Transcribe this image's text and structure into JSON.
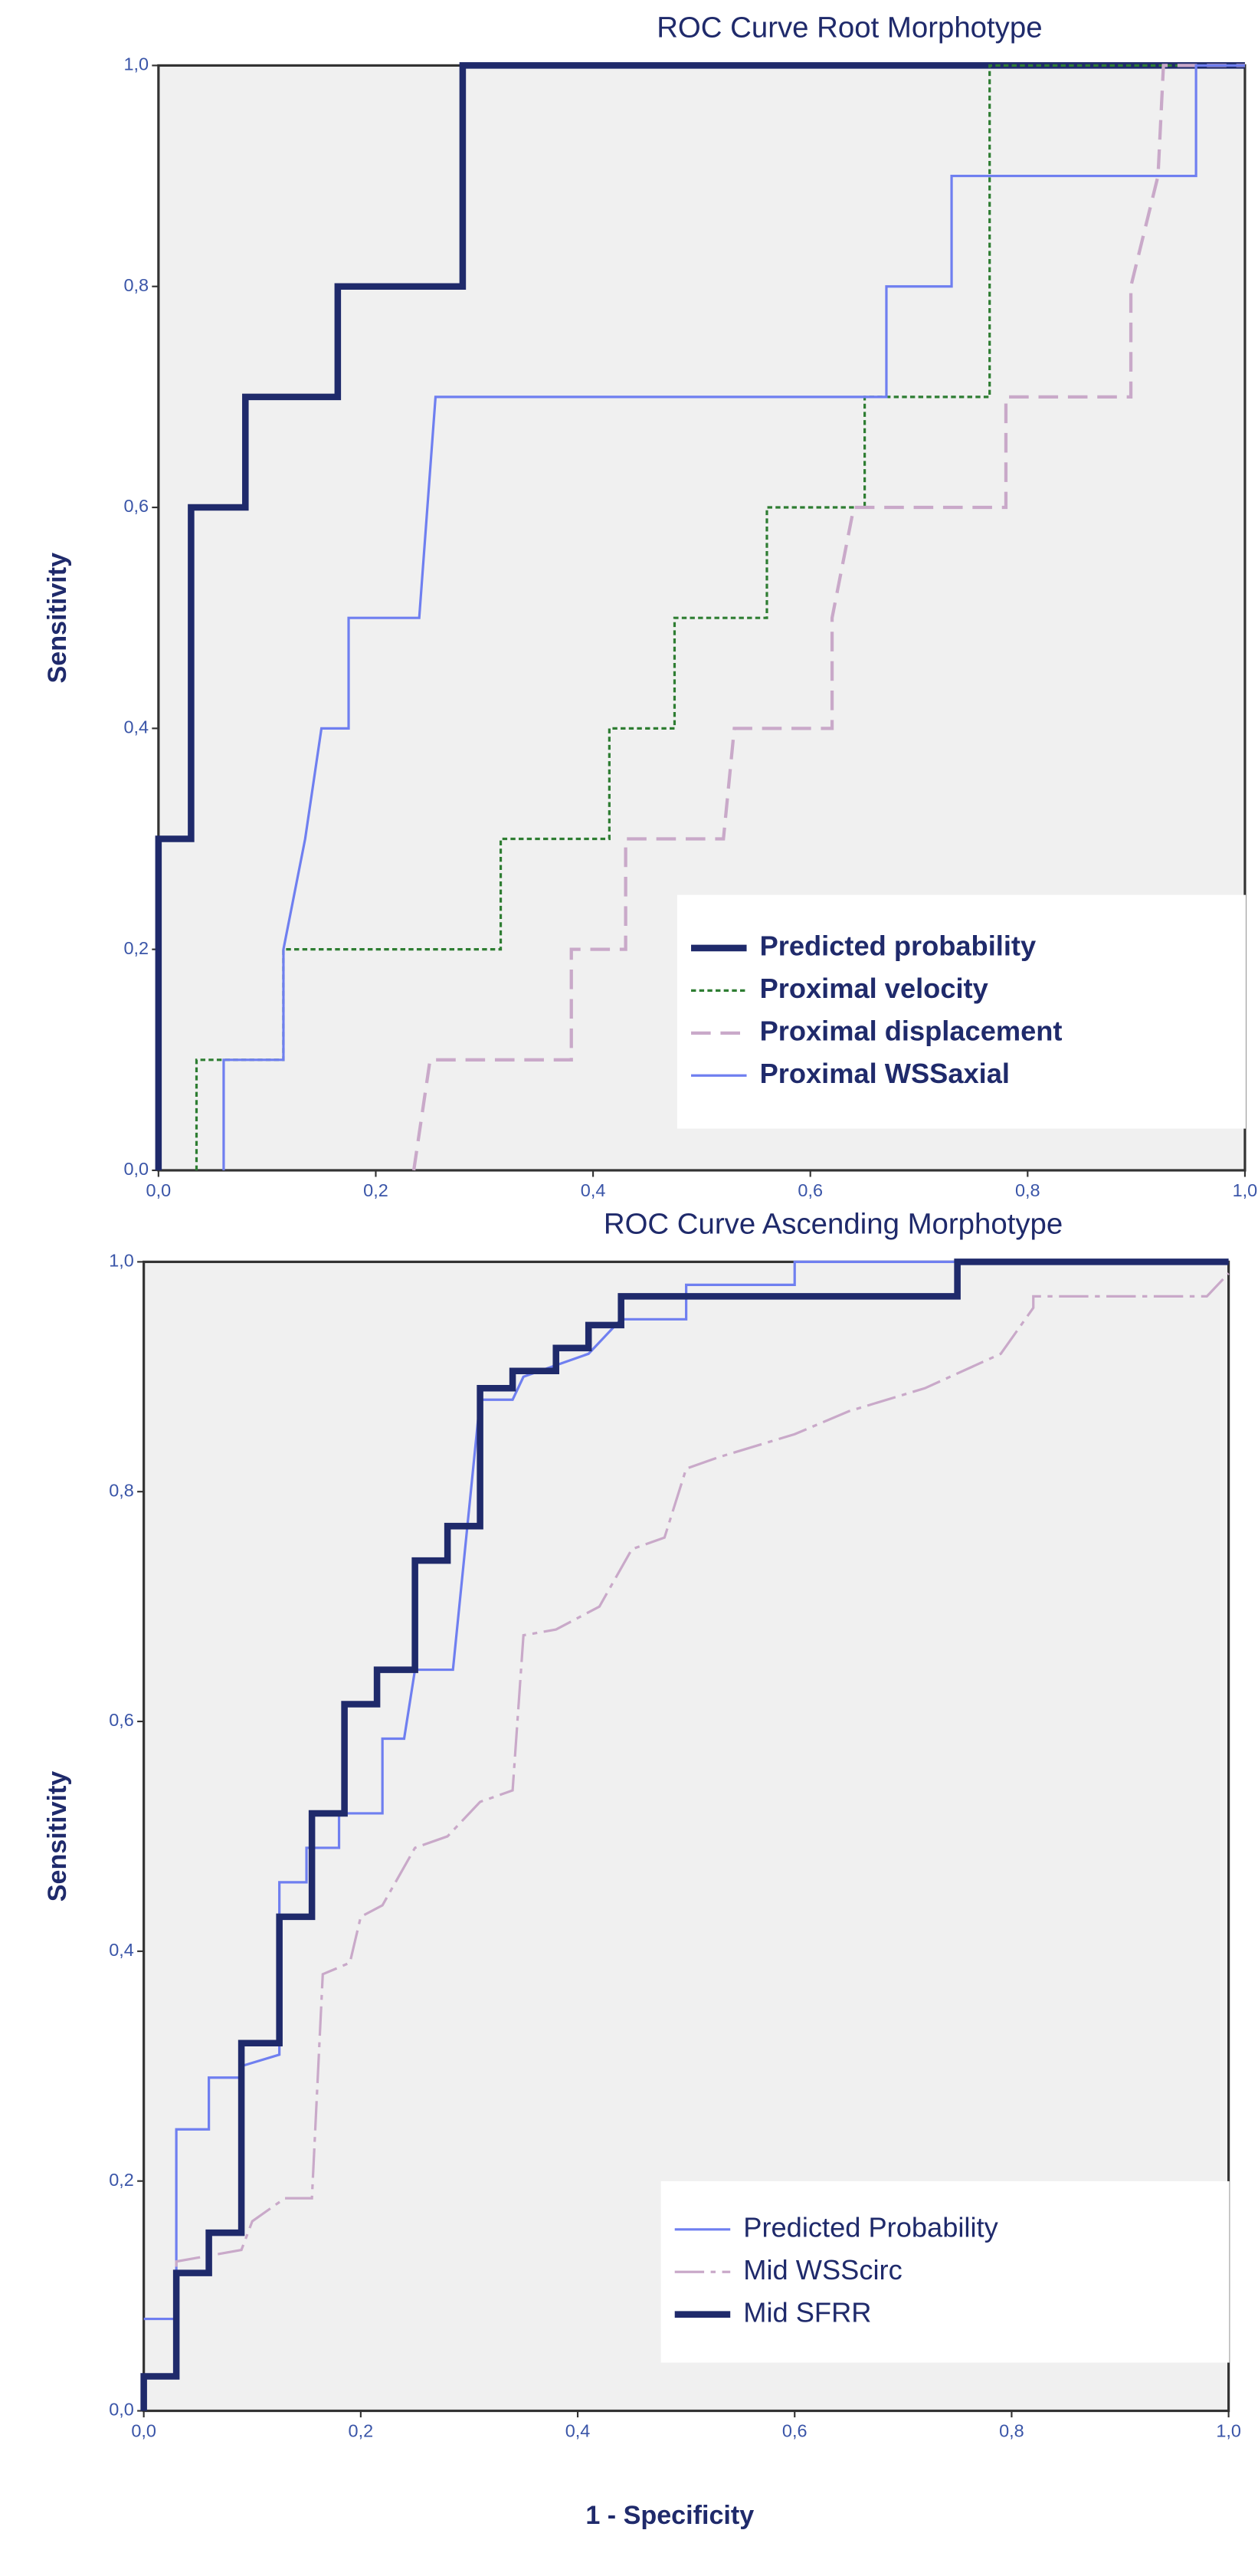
{
  "chart_data": [
    {
      "type": "line",
      "title": "ROC Curve Root Morphotype",
      "ylabel": "Sensitivity",
      "xlim": [
        0,
        1
      ],
      "ylim": [
        0,
        1
      ],
      "xticks": [
        {
          "value": 0,
          "label": "0,0"
        },
        {
          "value": 0.2,
          "label": "0,2"
        },
        {
          "value": 0.4,
          "label": "0,4"
        },
        {
          "value": 0.6,
          "label": "0,6"
        },
        {
          "value": 0.8,
          "label": "0,8"
        },
        {
          "value": 1,
          "label": "1,0"
        }
      ],
      "yticks": [
        {
          "value": 0,
          "label": "0,0"
        },
        {
          "value": 0.2,
          "label": "0,2"
        },
        {
          "value": 0.4,
          "label": "0,4"
        },
        {
          "value": 0.6,
          "label": "0,6"
        },
        {
          "value": 0.8,
          "label": "0,8"
        },
        {
          "value": 1,
          "label": "1,0"
        }
      ],
      "grid": false,
      "legend": "lower right",
      "legend_bold": true,
      "series": [
        {
          "name": "Predicted probability",
          "color": "#1f2a6b",
          "width": 4,
          "dash": "solid",
          "x": [
            0,
            0,
            0.03,
            0.03,
            0.08,
            0.08,
            0.165,
            0.165,
            0.28,
            0.28,
            1
          ],
          "values": [
            0,
            0.3,
            0.3,
            0.6,
            0.6,
            0.7,
            0.7,
            0.8,
            0.8,
            1,
            1
          ]
        },
        {
          "name": "Proximal velocity",
          "color": "#2e7d32",
          "width": 1.5,
          "dash": "dotted",
          "x": [
            0.035,
            0.035,
            0.115,
            0.115,
            0.315,
            0.315,
            0.415,
            0.415,
            0.475,
            0.475,
            0.56,
            0.56,
            0.65,
            0.65,
            0.765,
            0.765,
            1
          ],
          "values": [
            0,
            0.1,
            0.1,
            0.2,
            0.2,
            0.3,
            0.3,
            0.4,
            0.4,
            0.5,
            0.5,
            0.6,
            0.6,
            0.7,
            0.7,
            1,
            1
          ]
        },
        {
          "name": "Proximal displacement",
          "color": "#c9a9c9",
          "width": 2,
          "dash": "dashed",
          "x": [
            0.235,
            0.25,
            0.38,
            0.38,
            0.43,
            0.43,
            0.52,
            0.53,
            0.62,
            0.62,
            0.64,
            0.78,
            0.78,
            0.895,
            0.895,
            0.92,
            0.925,
            1
          ],
          "values": [
            0,
            0.1,
            0.1,
            0.2,
            0.2,
            0.3,
            0.3,
            0.4,
            0.4,
            0.5,
            0.6,
            0.6,
            0.7,
            0.7,
            0.8,
            0.9,
            1,
            1
          ]
        },
        {
          "name": "Proximal WSSaxial",
          "color": "#6f7ff0",
          "width": 1.5,
          "dash": "solid",
          "x": [
            0.06,
            0.06,
            0.115,
            0.115,
            0.135,
            0.15,
            0.175,
            0.175,
            0.24,
            0.255,
            0.67,
            0.67,
            0.73,
            0.73,
            0.955,
            0.955,
            1
          ],
          "values": [
            0,
            0.1,
            0.1,
            0.2,
            0.3,
            0.4,
            0.4,
            0.5,
            0.5,
            0.7,
            0.7,
            0.8,
            0.8,
            0.9,
            0.9,
            1,
            1
          ]
        }
      ]
    },
    {
      "type": "line",
      "title": "ROC Curve Ascending Morphotype",
      "ylabel": "Sensitivity",
      "xlabel": "1 - Specificity",
      "xlim": [
        0,
        1
      ],
      "ylim": [
        0,
        1
      ],
      "xticks": [
        {
          "value": 0,
          "label": "0,0"
        },
        {
          "value": 0.2,
          "label": "0,2"
        },
        {
          "value": 0.4,
          "label": "0,4"
        },
        {
          "value": 0.6,
          "label": "0,6"
        },
        {
          "value": 0.8,
          "label": "0,8"
        },
        {
          "value": 1,
          "label": "1,0"
        }
      ],
      "yticks": [
        {
          "value": 0,
          "label": "0,0"
        },
        {
          "value": 0.2,
          "label": "0,2"
        },
        {
          "value": 0.4,
          "label": "0,4"
        },
        {
          "value": 0.6,
          "label": "0,6"
        },
        {
          "value": 0.8,
          "label": "0,8"
        },
        {
          "value": 1,
          "label": "1,0"
        }
      ],
      "grid": false,
      "legend": "lower right",
      "legend_bold": false,
      "series": [
        {
          "name": "Predicted Probability",
          "color": "#6f7ff0",
          "width": 1.5,
          "dash": "solid",
          "x": [
            0,
            0.03,
            0.03,
            0.06,
            0.06,
            0.09,
            0.09,
            0.125,
            0.125,
            0.15,
            0.15,
            0.18,
            0.18,
            0.22,
            0.22,
            0.24,
            0.25,
            0.285,
            0.31,
            0.34,
            0.35,
            0.41,
            0.44,
            0.5,
            0.5,
            0.6,
            0.6,
            1
          ],
          "values": [
            0.08,
            0.08,
            0.245,
            0.245,
            0.29,
            0.29,
            0.3,
            0.31,
            0.46,
            0.46,
            0.49,
            0.49,
            0.52,
            0.52,
            0.585,
            0.585,
            0.645,
            0.645,
            0.88,
            0.88,
            0.9,
            0.92,
            0.95,
            0.95,
            0.98,
            0.98,
            1,
            1
          ]
        },
        {
          "name": "Mid WSScirc",
          "color": "#c9a9c9",
          "width": 1.5,
          "dash": "longdash",
          "x": [
            0,
            0.03,
            0.03,
            0.09,
            0.1,
            0.13,
            0.155,
            0.165,
            0.19,
            0.2,
            0.22,
            0.25,
            0.28,
            0.31,
            0.34,
            0.35,
            0.38,
            0.42,
            0.45,
            0.48,
            0.5,
            0.53,
            0.6,
            0.65,
            0.72,
            0.79,
            0.82,
            0.82,
            0.98,
            1
          ],
          "values": [
            0.03,
            0.03,
            0.13,
            0.14,
            0.165,
            0.185,
            0.185,
            0.38,
            0.39,
            0.43,
            0.44,
            0.49,
            0.5,
            0.53,
            0.54,
            0.675,
            0.68,
            0.7,
            0.75,
            0.76,
            0.82,
            0.83,
            0.85,
            0.87,
            0.89,
            0.92,
            0.96,
            0.97,
            0.97,
            0.99
          ]
        },
        {
          "name": "Mid SFRR",
          "color": "#1f2a6b",
          "width": 4,
          "dash": "solid",
          "x": [
            0,
            0,
            0.03,
            0.03,
            0.06,
            0.06,
            0.09,
            0.09,
            0.125,
            0.125,
            0.155,
            0.155,
            0.185,
            0.185,
            0.215,
            0.215,
            0.25,
            0.25,
            0.28,
            0.28,
            0.31,
            0.31,
            0.34,
            0.34,
            0.38,
            0.38,
            0.41,
            0.41,
            0.44,
            0.44,
            0.75,
            0.75,
            1
          ],
          "values": [
            0,
            0.03,
            0.03,
            0.12,
            0.12,
            0.155,
            0.155,
            0.32,
            0.32,
            0.43,
            0.43,
            0.52,
            0.52,
            0.615,
            0.615,
            0.645,
            0.645,
            0.74,
            0.74,
            0.77,
            0.77,
            0.89,
            0.89,
            0.905,
            0.905,
            0.925,
            0.925,
            0.945,
            0.945,
            0.97,
            0.97,
            1,
            1
          ]
        }
      ]
    }
  ]
}
